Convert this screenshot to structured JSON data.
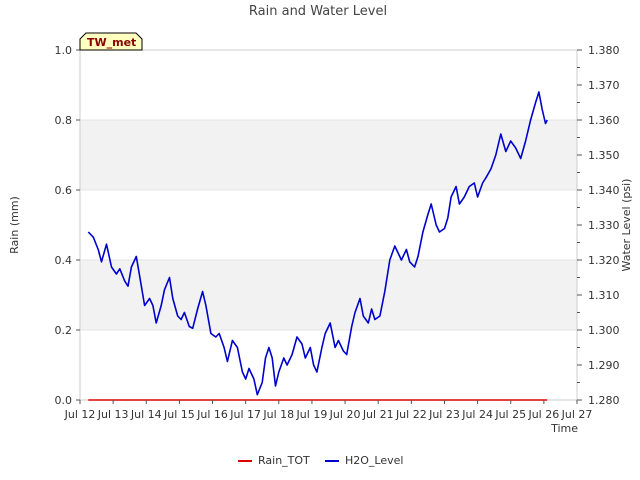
{
  "chart_data": {
    "type": "line",
    "title": "Rain and Water Level",
    "badge": "TW_met",
    "xlabel": "Time",
    "ylabel_left": "Rain (mm)",
    "ylabel_right": "Water Level (psi)",
    "x_ticks": [
      "Jul 12",
      "Jul 13",
      "Jul 14",
      "Jul 15",
      "Jul 16",
      "Jul 17",
      "Jul 18",
      "Jul 19",
      "Jul 20",
      "Jul 21",
      "Jul 22",
      "Jul 23",
      "Jul 24",
      "Jul 25",
      "Jul 26",
      "Jul 27"
    ],
    "xlim": [
      12,
      27
    ],
    "ylim_left": [
      0.0,
      1.0
    ],
    "ylim_right": [
      1.28,
      1.38
    ],
    "left_ticks": [
      "0.0",
      "0.2",
      "0.4",
      "0.6",
      "0.8",
      "1.0"
    ],
    "right_ticks": [
      "1.280",
      "1.290",
      "1.300",
      "1.310",
      "1.320",
      "1.330",
      "1.340",
      "1.350",
      "1.360",
      "1.370",
      "1.380"
    ],
    "colors": {
      "rain": "#dd0000",
      "water": "#0000cc",
      "band": "#f2f2f2",
      "badge_fill": "#ffffc0"
    },
    "series": [
      {
        "name": "Rain_TOT",
        "axis": "left",
        "x": [
          12.25,
          26.1
        ],
        "y": [
          0.0,
          0.0
        ]
      },
      {
        "name": "H2O_Level",
        "axis": "right",
        "x": [
          12.25,
          12.4,
          12.55,
          12.65,
          12.8,
          12.95,
          13.1,
          13.2,
          13.35,
          13.45,
          13.55,
          13.7,
          13.8,
          13.95,
          14.1,
          14.2,
          14.3,
          14.45,
          14.55,
          14.7,
          14.8,
          14.95,
          15.05,
          15.15,
          15.3,
          15.4,
          15.55,
          15.7,
          15.8,
          15.95,
          16.1,
          16.2,
          16.35,
          16.45,
          16.6,
          16.75,
          16.9,
          17.0,
          17.1,
          17.25,
          17.35,
          17.5,
          17.6,
          17.7,
          17.8,
          17.9,
          18.0,
          18.15,
          18.25,
          18.4,
          18.55,
          18.7,
          18.8,
          18.95,
          19.05,
          19.15,
          19.3,
          19.4,
          19.55,
          19.7,
          19.8,
          19.95,
          20.05,
          20.2,
          20.3,
          20.45,
          20.55,
          20.7,
          20.8,
          20.9,
          21.05,
          21.2,
          21.35,
          21.5,
          21.6,
          21.7,
          21.85,
          21.95,
          22.1,
          22.2,
          22.35,
          22.5,
          22.6,
          22.75,
          22.85,
          23.0,
          23.1,
          23.2,
          23.35,
          23.45,
          23.6,
          23.75,
          23.9,
          24.0,
          24.15,
          24.25,
          24.4,
          24.55,
          24.7,
          24.85,
          25.0,
          25.15,
          25.3,
          25.45,
          25.6,
          25.75,
          25.85,
          25.95,
          26.05,
          26.1
        ],
        "y": [
          1.328,
          1.3265,
          1.323,
          1.3195,
          1.3245,
          1.318,
          1.316,
          1.3175,
          1.314,
          1.3125,
          1.318,
          1.321,
          1.3155,
          1.307,
          1.309,
          1.307,
          1.302,
          1.307,
          1.3115,
          1.315,
          1.309,
          1.304,
          1.303,
          1.305,
          1.301,
          1.3005,
          1.306,
          1.311,
          1.307,
          1.299,
          1.298,
          1.299,
          1.295,
          1.291,
          1.297,
          1.295,
          1.288,
          1.286,
          1.289,
          1.286,
          1.2815,
          1.285,
          1.292,
          1.295,
          1.292,
          1.284,
          1.288,
          1.292,
          1.29,
          1.293,
          1.298,
          1.296,
          1.292,
          1.295,
          1.29,
          1.288,
          1.295,
          1.299,
          1.302,
          1.295,
          1.297,
          1.294,
          1.293,
          1.301,
          1.305,
          1.309,
          1.304,
          1.302,
          1.306,
          1.303,
          1.304,
          1.311,
          1.32,
          1.324,
          1.322,
          1.32,
          1.323,
          1.3195,
          1.318,
          1.321,
          1.328,
          1.333,
          1.336,
          1.33,
          1.328,
          1.329,
          1.332,
          1.338,
          1.341,
          1.336,
          1.338,
          1.341,
          1.342,
          1.338,
          1.342,
          1.3435,
          1.346,
          1.35,
          1.356,
          1.351,
          1.354,
          1.352,
          1.349,
          1.354,
          1.36,
          1.365,
          1.368,
          1.363,
          1.359,
          1.36
        ]
      }
    ],
    "legend": [
      {
        "label": "Rain_TOT",
        "color": "#dd0000"
      },
      {
        "label": "H2O_Level",
        "color": "#0000cc"
      }
    ]
  }
}
